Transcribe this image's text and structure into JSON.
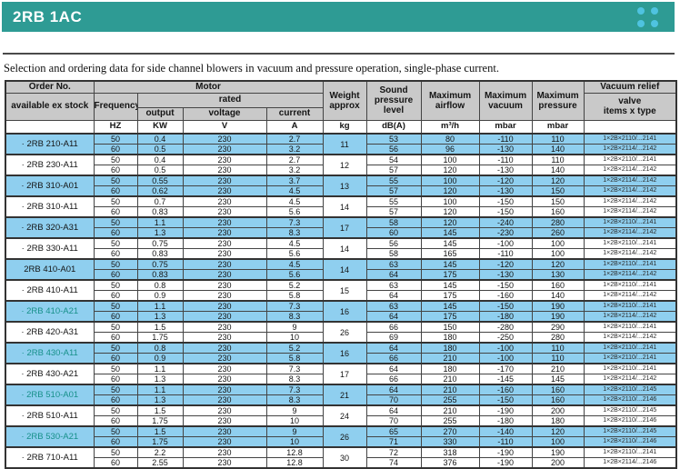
{
  "banner": {
    "title": "2RB 1AC"
  },
  "caption": "Selection and ordering data for side channel blowers in vacuum and pressure operation, single-phase current.",
  "colors": {
    "banner_teal": "#2E9B94",
    "dot_blue": "#4FC3E0",
    "row_highlight": "#8FCFEF",
    "header_gray": "#C9C9C9",
    "teal_link_text": "#17908A"
  },
  "table": {
    "headers": {
      "order_no": "Order No.",
      "available": "available ex stock",
      "motor": "Motor",
      "frequency": "Frequency",
      "rated": "rated",
      "output": "output",
      "voltage": "voltage",
      "current": "current",
      "weight": "Weight\napprox",
      "sound": "Sound\npressure\nlevel",
      "airflow": "Maximum\nairflow",
      "vacuum": "Maximum\nvacuum",
      "pressure": "Maximum\npressure",
      "vacuum_relief": "Vacuum relief",
      "valve_type": "valve\nitems x type"
    },
    "units": [
      "HZ",
      "KW",
      "V",
      "A",
      "kg",
      "dB(A)",
      "m³/h",
      "mbar",
      "mbar"
    ],
    "rows": [
      {
        "order": "2RB 210-A11",
        "bullet": true,
        "highlight": true,
        "teal": false,
        "weight": "11",
        "sub": [
          {
            "hz": "50",
            "kw": "0.4",
            "v": "230",
            "a": "2.7",
            "db": "53",
            "m3h": "80",
            "vac": "-110",
            "press": "110",
            "valve": "1×2B×2110/...2141"
          },
          {
            "hz": "60",
            "kw": "0.5",
            "v": "230",
            "a": "3.2",
            "db": "56",
            "m3h": "96",
            "vac": "-130",
            "press": "140",
            "valve": "1×2B×2114/...2142"
          }
        ]
      },
      {
        "order": "2RB 230-A11",
        "bullet": true,
        "highlight": false,
        "teal": false,
        "weight": "12",
        "sub": [
          {
            "hz": "50",
            "kw": "0.4",
            "v": "230",
            "a": "2.7",
            "db": "54",
            "m3h": "100",
            "vac": "-110",
            "press": "110",
            "valve": "1×2B×2110/...2141"
          },
          {
            "hz": "60",
            "kw": "0.5",
            "v": "230",
            "a": "3.2",
            "db": "57",
            "m3h": "120",
            "vac": "-130",
            "press": "140",
            "valve": "1×2B×2114/...2142"
          }
        ]
      },
      {
        "order": "2RB 310-A01",
        "bullet": true,
        "highlight": true,
        "teal": false,
        "weight": "13",
        "sub": [
          {
            "hz": "50",
            "kw": "0.55",
            "v": "230",
            "a": "3.7",
            "db": "55",
            "m3h": "100",
            "vac": "-120",
            "press": "120",
            "valve": "1×2B×2114/...2142"
          },
          {
            "hz": "60",
            "kw": "0.62",
            "v": "230",
            "a": "4.5",
            "db": "57",
            "m3h": "120",
            "vac": "-130",
            "press": "150",
            "valve": "1×2B×2114/...2142"
          }
        ]
      },
      {
        "order": "2RB 310-A11",
        "bullet": true,
        "highlight": false,
        "teal": false,
        "weight": "14",
        "sub": [
          {
            "hz": "50",
            "kw": "0.7",
            "v": "230",
            "a": "4.5",
            "db": "55",
            "m3h": "100",
            "vac": "-150",
            "press": "150",
            "valve": "1×2B×2114/...2142"
          },
          {
            "hz": "60",
            "kw": "0.83",
            "v": "230",
            "a": "5.6",
            "db": "57",
            "m3h": "120",
            "vac": "-150",
            "press": "160",
            "valve": "1×2B×2114/...2142"
          }
        ]
      },
      {
        "order": "2RB 320-A31",
        "bullet": true,
        "highlight": true,
        "teal": false,
        "weight": "17",
        "sub": [
          {
            "hz": "50",
            "kw": "1.1",
            "v": "230",
            "a": "7.3",
            "db": "58",
            "m3h": "120",
            "vac": "-240",
            "press": "280",
            "valve": "1×2B×2110/...2141"
          },
          {
            "hz": "60",
            "kw": "1.3",
            "v": "230",
            "a": "8.3",
            "db": "60",
            "m3h": "145",
            "vac": "-230",
            "press": "260",
            "valve": "1×2B×2114/...2142"
          }
        ]
      },
      {
        "order": "2RB 330-A11",
        "bullet": true,
        "highlight": false,
        "teal": false,
        "weight": "14",
        "sub": [
          {
            "hz": "50",
            "kw": "0.75",
            "v": "230",
            "a": "4.5",
            "db": "56",
            "m3h": "145",
            "vac": "-100",
            "press": "100",
            "valve": "1×2B×2110/...2141"
          },
          {
            "hz": "60",
            "kw": "0.83",
            "v": "230",
            "a": "5.6",
            "db": "58",
            "m3h": "165",
            "vac": "-110",
            "press": "100",
            "valve": "1×2B×2114/...2142"
          }
        ]
      },
      {
        "order": "2RB 410-A01",
        "bullet": false,
        "highlight": true,
        "teal": false,
        "weight": "14",
        "sub": [
          {
            "hz": "50",
            "kw": "0.75",
            "v": "230",
            "a": "4.5",
            "db": "63",
            "m3h": "145",
            "vac": "-120",
            "press": "120",
            "valve": "1×2B×2110/...2141"
          },
          {
            "hz": "60",
            "kw": "0.83",
            "v": "230",
            "a": "5.6",
            "db": "64",
            "m3h": "175",
            "vac": "-130",
            "press": "130",
            "valve": "1×2B×2114/...2142"
          }
        ]
      },
      {
        "order": "2RB 410-A11",
        "bullet": true,
        "highlight": false,
        "teal": false,
        "weight": "15",
        "sub": [
          {
            "hz": "50",
            "kw": "0.8",
            "v": "230",
            "a": "5.2",
            "db": "63",
            "m3h": "145",
            "vac": "-150",
            "press": "160",
            "valve": "1×2B×2110/...2141"
          },
          {
            "hz": "60",
            "kw": "0.9",
            "v": "230",
            "a": "5.8",
            "db": "64",
            "m3h": "175",
            "vac": "-160",
            "press": "140",
            "valve": "1×2B×2114/...2142"
          }
        ]
      },
      {
        "order": "2RB 410-A21",
        "bullet": true,
        "highlight": true,
        "teal": true,
        "weight": "16",
        "sub": [
          {
            "hz": "50",
            "kw": "1.1",
            "v": "230",
            "a": "7.3",
            "db": "63",
            "m3h": "145",
            "vac": "-150",
            "press": "190",
            "valve": "1×2B×2110/...2141"
          },
          {
            "hz": "60",
            "kw": "1.3",
            "v": "230",
            "a": "8.3",
            "db": "64",
            "m3h": "175",
            "vac": "-180",
            "press": "190",
            "valve": "1×2B×2114/...2142"
          }
        ]
      },
      {
        "order": "2RB 420-A31",
        "bullet": true,
        "highlight": false,
        "teal": false,
        "weight": "26",
        "sub": [
          {
            "hz": "50",
            "kw": "1.5",
            "v": "230",
            "a": "9",
            "db": "66",
            "m3h": "150",
            "vac": "-280",
            "press": "290",
            "valve": "1×2B×2110/...2141"
          },
          {
            "hz": "60",
            "kw": "1.75",
            "v": "230",
            "a": "10",
            "db": "69",
            "m3h": "180",
            "vac": "-250",
            "press": "280",
            "valve": "1×2B×2114/...2142"
          }
        ]
      },
      {
        "order": "2RB 430-A11",
        "bullet": true,
        "highlight": true,
        "teal": true,
        "weight": "16",
        "sub": [
          {
            "hz": "50",
            "kw": "0.8",
            "v": "230",
            "a": "5.2",
            "db": "64",
            "m3h": "180",
            "vac": "-100",
            "press": "110",
            "valve": "1×2B×2110/...2141"
          },
          {
            "hz": "60",
            "kw": "0.9",
            "v": "230",
            "a": "5.8",
            "db": "66",
            "m3h": "210",
            "vac": "-100",
            "press": "110",
            "valve": "1×2B×2110/...2141"
          }
        ]
      },
      {
        "order": "2RB 430-A21",
        "bullet": true,
        "highlight": false,
        "teal": false,
        "weight": "17",
        "sub": [
          {
            "hz": "50",
            "kw": "1.1",
            "v": "230",
            "a": "7.3",
            "db": "64",
            "m3h": "180",
            "vac": "-170",
            "press": "210",
            "valve": "1×2B×2110/...2141"
          },
          {
            "hz": "60",
            "kw": "1.3",
            "v": "230",
            "a": "8.3",
            "db": "66",
            "m3h": "210",
            "vac": "-145",
            "press": "145",
            "valve": "1×2B×2114/...2142"
          }
        ]
      },
      {
        "order": "2RB 510-A01",
        "bullet": true,
        "highlight": true,
        "teal": true,
        "weight": "21",
        "sub": [
          {
            "hz": "50",
            "kw": "1.1",
            "v": "230",
            "a": "7.3",
            "db": "64",
            "m3h": "210",
            "vac": "-160",
            "press": "160",
            "valve": "1×2B×2110/...2145"
          },
          {
            "hz": "60",
            "kw": "1.3",
            "v": "230",
            "a": "8.3",
            "db": "70",
            "m3h": "255",
            "vac": "-150",
            "press": "160",
            "valve": "1×2B×2110/...2146"
          }
        ]
      },
      {
        "order": "2RB 510-A11",
        "bullet": true,
        "highlight": false,
        "teal": false,
        "weight": "24",
        "sub": [
          {
            "hz": "50",
            "kw": "1.5",
            "v": "230",
            "a": "9",
            "db": "64",
            "m3h": "210",
            "vac": "-190",
            "press": "200",
            "valve": "1×2B×2110/...2145"
          },
          {
            "hz": "60",
            "kw": "1.75",
            "v": "230",
            "a": "10",
            "db": "70",
            "m3h": "255",
            "vac": "-180",
            "press": "180",
            "valve": "1×2B×2110/...2146"
          }
        ]
      },
      {
        "order": "2RB 530-A21",
        "bullet": true,
        "highlight": true,
        "teal": true,
        "weight": "26",
        "sub": [
          {
            "hz": "50",
            "kw": "1.5",
            "v": "230",
            "a": "9",
            "db": "65",
            "m3h": "270",
            "vac": "-140",
            "press": "120",
            "valve": "1×2B×2110/...2145"
          },
          {
            "hz": "60",
            "kw": "1.75",
            "v": "230",
            "a": "10",
            "db": "71",
            "m3h": "330",
            "vac": "-110",
            "press": "100",
            "valve": "1×2B×2110/...2146"
          }
        ]
      },
      {
        "order": "2RB 710-A11",
        "bullet": true,
        "highlight": false,
        "teal": false,
        "weight": "30",
        "sub": [
          {
            "hz": "50",
            "kw": "2.2",
            "v": "230",
            "a": "12.8",
            "db": "72",
            "m3h": "318",
            "vac": "-190",
            "press": "190",
            "valve": "1×2B×2110/...2141"
          },
          {
            "hz": "60",
            "kw": "2.55",
            "v": "230",
            "a": "12.8",
            "db": "74",
            "m3h": "376",
            "vac": "-190",
            "press": "200",
            "valve": "1×2B×2114/...2146"
          }
        ]
      }
    ]
  }
}
